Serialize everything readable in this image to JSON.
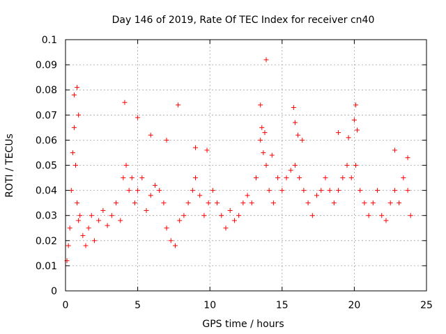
{
  "chart_data": {
    "type": "scatter",
    "title": "Day 146 of 2019, Rate Of TEC Index for receiver cn40",
    "xlabel": "GPS time / hours",
    "ylabel": "ROTI / TECUs",
    "xlim": [
      0,
      25
    ],
    "ylim": [
      0,
      0.1
    ],
    "xticks": [
      0,
      5,
      10,
      15,
      20,
      25
    ],
    "xtick_labels": [
      "0",
      "5",
      "10",
      "15",
      "20",
      "25"
    ],
    "yticks": [
      0,
      0.01,
      0.02,
      0.03,
      0.04,
      0.05,
      0.06,
      0.07,
      0.08,
      0.09,
      0.1
    ],
    "ytick_labels": [
      "0",
      "0.01",
      "0.02",
      "0.03",
      "0.04",
      "0.05",
      "0.06",
      "0.07",
      "0.08",
      "0.09",
      "0.1"
    ],
    "grid": true,
    "marker": "+",
    "color": "#ff0000",
    "series": [
      {
        "x": [
          0.1,
          0.2,
          0.3,
          0.4,
          0.5,
          0.6,
          0.7,
          0.8,
          0.9,
          1.0,
          1.2,
          1.4,
          1.6,
          1.8,
          2.0,
          2.3,
          2.6,
          2.9,
          3.2,
          3.5,
          3.8,
          4.0,
          4.2,
          4.4,
          4.6,
          4.8,
          5.0,
          5.3,
          5.6,
          5.9,
          6.2,
          6.5,
          6.8,
          7.0,
          7.3,
          7.6,
          7.9,
          8.2,
          8.5,
          8.8,
          9.0,
          9.3,
          9.6,
          9.9,
          10.2,
          10.5,
          10.8,
          11.1,
          11.4,
          11.7,
          12.0,
          12.3,
          12.6,
          12.9,
          13.2,
          13.5,
          13.7,
          13.9,
          14.1,
          14.4,
          14.7,
          15.0,
          15.3,
          15.6,
          15.9,
          16.2,
          16.5,
          16.8,
          17.1,
          17.4,
          17.7,
          18.0,
          18.3,
          18.6,
          18.9,
          19.2,
          19.5,
          19.8,
          20.1,
          20.4,
          20.7,
          21.0,
          21.3,
          21.6,
          21.9,
          22.2,
          22.5,
          22.8,
          23.1,
          23.4,
          23.7,
          23.9,
          0.6,
          0.8,
          0.9,
          4.1,
          5.0,
          5.9,
          7.0,
          7.8,
          9.0,
          9.8,
          13.5,
          13.6,
          13.8,
          13.9,
          14.3,
          15.8,
          15.9,
          16.1,
          16.4,
          18.9,
          19.6,
          20.0,
          20.1,
          20.2,
          22.8,
          23.7
        ],
        "y": [
          0.012,
          0.018,
          0.025,
          0.04,
          0.055,
          0.065,
          0.05,
          0.035,
          0.028,
          0.03,
          0.022,
          0.018,
          0.025,
          0.03,
          0.02,
          0.028,
          0.032,
          0.026,
          0.03,
          0.035,
          0.028,
          0.045,
          0.05,
          0.04,
          0.045,
          0.035,
          0.04,
          0.045,
          0.032,
          0.038,
          0.042,
          0.04,
          0.035,
          0.025,
          0.02,
          0.018,
          0.028,
          0.03,
          0.035,
          0.04,
          0.045,
          0.038,
          0.03,
          0.035,
          0.04,
          0.035,
          0.03,
          0.025,
          0.032,
          0.028,
          0.03,
          0.035,
          0.038,
          0.035,
          0.045,
          0.06,
          0.055,
          0.05,
          0.04,
          0.035,
          0.045,
          0.04,
          0.045,
          0.048,
          0.05,
          0.045,
          0.04,
          0.035,
          0.03,
          0.038,
          0.04,
          0.045,
          0.04,
          0.035,
          0.04,
          0.045,
          0.05,
          0.045,
          0.05,
          0.04,
          0.035,
          0.03,
          0.035,
          0.04,
          0.03,
          0.028,
          0.035,
          0.04,
          0.035,
          0.045,
          0.04,
          0.03,
          0.078,
          0.081,
          0.07,
          0.075,
          0.069,
          0.062,
          0.06,
          0.074,
          0.057,
          0.056,
          0.074,
          0.065,
          0.063,
          0.092,
          0.054,
          0.073,
          0.067,
          0.062,
          0.06,
          0.063,
          0.061,
          0.068,
          0.074,
          0.064,
          0.056,
          0.053
        ]
      }
    ]
  }
}
